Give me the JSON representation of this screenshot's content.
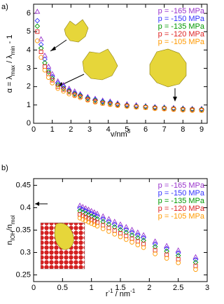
{
  "chart_data": [
    {
      "type": "scatter",
      "panel_label": "a)",
      "xlabel": [
        "v/nm",
        "3"
      ],
      "ylabel": [
        "α = λ",
        "max",
        " / λ",
        "min",
        " - 1"
      ],
      "xlim": [
        0,
        9.3
      ],
      "ylim": [
        0,
        6.5
      ],
      "xticks": [
        0,
        1,
        2,
        3,
        4,
        5,
        6,
        7,
        8,
        9
      ],
      "yticks": [
        0,
        1,
        2,
        3,
        4,
        5,
        6
      ],
      "x": [
        0.2,
        0.4,
        0.6,
        0.8,
        1.0,
        1.3,
        1.6,
        1.9,
        2.2,
        2.5,
        2.9,
        3.3,
        3.7,
        4.1,
        4.5,
        5.0,
        5.5,
        6.0,
        6.5,
        7.0,
        7.5,
        8.0,
        8.5,
        9.0
      ],
      "series": [
        {
          "name": "p = -165 MPa",
          "color": "#9933cc",
          "marker": "triangle",
          "values": [
            6.1,
            4.6,
            3.7,
            3.1,
            2.7,
            2.3,
            2.1,
            1.9,
            1.75,
            1.6,
            1.45,
            1.35,
            1.25,
            1.2,
            1.1,
            1.05,
            1.0,
            0.95,
            0.9,
            0.88,
            0.85,
            0.82,
            0.8,
            0.8
          ]
        },
        {
          "name": "p = -150 MPa",
          "color": "#3333ff",
          "marker": "diamond",
          "values": [
            5.6,
            4.3,
            3.5,
            2.9,
            2.55,
            2.2,
            2.0,
            1.8,
            1.65,
            1.55,
            1.4,
            1.3,
            1.2,
            1.15,
            1.05,
            1.0,
            0.95,
            0.92,
            0.88,
            0.85,
            0.82,
            0.8,
            0.78,
            0.77
          ]
        },
        {
          "name": "p = -135 MPa",
          "color": "#009900",
          "marker": "diamond",
          "values": [
            5.3,
            4.1,
            3.3,
            2.8,
            2.45,
            2.1,
            1.9,
            1.75,
            1.6,
            1.5,
            1.35,
            1.25,
            1.15,
            1.1,
            1.02,
            0.97,
            0.92,
            0.9,
            0.85,
            0.83,
            0.8,
            0.78,
            0.76,
            0.75
          ]
        },
        {
          "name": "p = -120 MPa",
          "color": "#dd2222",
          "marker": "square",
          "values": [
            5.0,
            3.9,
            3.1,
            2.7,
            2.35,
            2.0,
            1.85,
            1.7,
            1.55,
            1.45,
            1.3,
            1.2,
            1.1,
            1.05,
            1.0,
            0.95,
            0.9,
            0.87,
            0.83,
            0.8,
            0.78,
            0.75,
            0.74,
            0.72
          ]
        },
        {
          "name": "p = -105 MPa",
          "color": "#ff9900",
          "marker": "circle",
          "values": [
            4.5,
            3.6,
            2.9,
            2.5,
            2.2,
            1.9,
            1.75,
            1.6,
            1.5,
            1.4,
            1.25,
            1.15,
            1.08,
            1.02,
            0.97,
            0.92,
            0.88,
            0.85,
            0.8,
            0.78,
            0.75,
            0.72,
            0.7,
            0.7
          ]
        }
      ]
    },
    {
      "type": "scatter",
      "panel_label": "b)",
      "xlabel": [
        "r",
        "-1",
        " / nm",
        "-1"
      ],
      "ylabel": [
        "n",
        "IOH",
        "/n",
        "mol"
      ],
      "xlim": [
        0,
        3
      ],
      "ylim": [
        0.235,
        0.465
      ],
      "xticks": [
        0,
        0.5,
        1,
        1.5,
        2,
        2.5,
        3
      ],
      "yticks": [
        0.25,
        0.3,
        0.35,
        0.4,
        0.45
      ],
      "x": [
        0.8,
        0.85,
        0.9,
        0.95,
        1.0,
        1.05,
        1.1,
        1.2,
        1.3,
        1.4,
        1.5,
        1.6,
        1.7,
        1.8,
        1.9,
        2.1,
        2.3,
        2.5,
        2.8
      ],
      "series": [
        {
          "name": "p = -165 MPa",
          "color": "#9933cc",
          "marker": "triangle",
          "values": [
            0.405,
            0.402,
            0.399,
            0.396,
            0.393,
            0.39,
            0.387,
            0.381,
            0.375,
            0.369,
            0.363,
            0.357,
            0.351,
            0.345,
            0.339,
            0.325,
            0.315,
            0.305,
            0.29
          ]
        },
        {
          "name": "p = -150 MPa",
          "color": "#3333ff",
          "marker": "diamond",
          "values": [
            0.399,
            0.396,
            0.393,
            0.39,
            0.387,
            0.384,
            0.381,
            0.375,
            0.369,
            0.363,
            0.357,
            0.351,
            0.345,
            0.339,
            0.333,
            0.319,
            0.309,
            0.299,
            0.284
          ]
        },
        {
          "name": "p = -135 MPa",
          "color": "#009900",
          "marker": "diamond",
          "values": [
            0.393,
            0.39,
            0.387,
            0.384,
            0.381,
            0.378,
            0.375,
            0.369,
            0.363,
            0.357,
            0.351,
            0.345,
            0.339,
            0.333,
            0.327,
            0.313,
            0.303,
            0.293,
            0.278
          ]
        },
        {
          "name": "p = -120 MPa",
          "color": "#dd2222",
          "marker": "square",
          "values": [
            0.385,
            0.382,
            0.379,
            0.376,
            0.373,
            0.37,
            0.367,
            0.361,
            0.355,
            0.349,
            0.343,
            0.337,
            0.331,
            0.325,
            0.319,
            0.305,
            0.295,
            0.285,
            0.27
          ]
        },
        {
          "name": "p = -105 MPa",
          "color": "#ff9900",
          "marker": "circle",
          "values": [
            0.377,
            0.374,
            0.371,
            0.368,
            0.365,
            0.362,
            0.359,
            0.353,
            0.347,
            0.341,
            0.335,
            0.329,
            0.323,
            0.317,
            0.311,
            0.297,
            0.287,
            0.277,
            0.262
          ]
        }
      ]
    }
  ]
}
